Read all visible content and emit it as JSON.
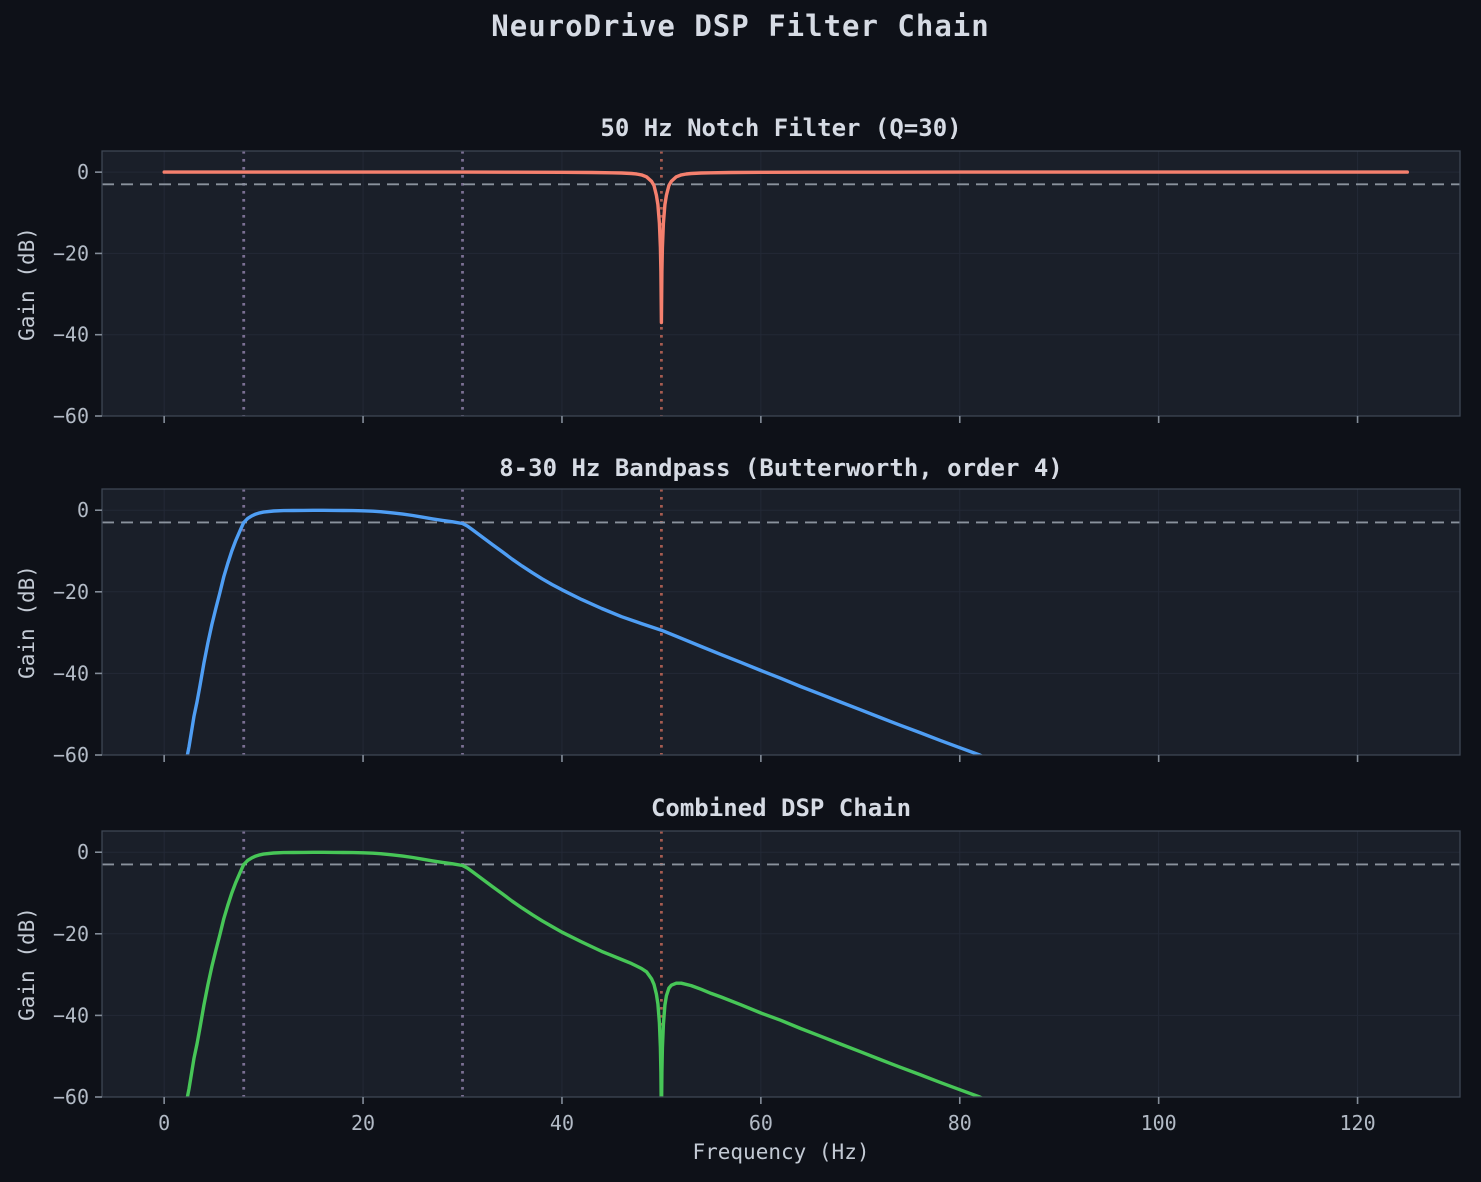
{
  "figure": {
    "title": "NeuroDrive DSP Filter Chain",
    "xlabel": "Frequency (Hz)",
    "colors": {
      "background": "#0e1118",
      "axes_background": "#1a1f29",
      "title_text": "#d6dbe4",
      "axis_label_text": "#c3cad4",
      "tick_text": "#b2bac5",
      "grid": "#232936",
      "spine": "#3e4654",
      "tick_mark": "#848d99",
      "notch_curve": "#f5806e",
      "bandpass_curve": "#4f9ef4",
      "combined_curve": "#47c657",
      "band_edge_vline": "#7b6f93",
      "notch_freq_vline": "#a65b50",
      "minus3db_line": "#8a929d"
    }
  },
  "chart_data": [
    {
      "type": "line",
      "title": "50 Hz Notch Filter (Q=30)",
      "ylabel": "Gain (dB)",
      "color": "#f5806e",
      "xlim": [
        -6.25,
        130.3
      ],
      "ylim": [
        -60,
        5.2
      ],
      "xticks": [
        0,
        20,
        40,
        60,
        80,
        100,
        120
      ],
      "yticks": [
        0,
        -20,
        -40,
        -60
      ],
      "show_xticklabels": false,
      "grid": true,
      "vlines": [
        {
          "x": 8,
          "color": "#7b6f93",
          "style": "dotted"
        },
        {
          "x": 30,
          "color": "#7b6f93",
          "style": "dotted"
        },
        {
          "x": 50,
          "color": "#a65b50",
          "style": "dotted"
        }
      ],
      "hline": {
        "y": -3,
        "color": "#8a929d",
        "style": "dashed"
      },
      "points": [
        [
          0,
          0
        ],
        [
          10,
          0
        ],
        [
          20,
          0
        ],
        [
          30,
          0
        ],
        [
          35,
          -0.02
        ],
        [
          40,
          -0.05
        ],
        [
          43,
          -0.1
        ],
        [
          45,
          -0.16
        ],
        [
          46,
          -0.22
        ],
        [
          47,
          -0.33
        ],
        [
          47.5,
          -0.45
        ],
        [
          48,
          -0.68
        ],
        [
          48.5,
          -1.15
        ],
        [
          49,
          -2.25
        ],
        [
          49.25,
          -3.3
        ],
        [
          49.5,
          -5.7
        ],
        [
          49.65,
          -8
        ],
        [
          49.8,
          -12.6
        ],
        [
          49.9,
          -18.6
        ],
        [
          49.95,
          -24.5
        ],
        [
          50,
          -37
        ],
        [
          50.05,
          -24.5
        ],
        [
          50.1,
          -18.6
        ],
        [
          50.2,
          -12.6
        ],
        [
          50.35,
          -8
        ],
        [
          50.5,
          -5.7
        ],
        [
          50.75,
          -3.3
        ],
        [
          51,
          -2.25
        ],
        [
          51.5,
          -1.15
        ],
        [
          52,
          -0.68
        ],
        [
          52.5,
          -0.45
        ],
        [
          53,
          -0.33
        ],
        [
          54,
          -0.22
        ],
        [
          55,
          -0.16
        ],
        [
          57,
          -0.1
        ],
        [
          60,
          -0.05
        ],
        [
          65,
          -0.02
        ],
        [
          70,
          -0.01
        ],
        [
          80,
          0
        ],
        [
          90,
          0
        ],
        [
          100,
          0
        ],
        [
          110,
          0
        ],
        [
          120,
          0
        ],
        [
          125,
          0
        ]
      ]
    },
    {
      "type": "line",
      "title": "8-30 Hz Bandpass (Butterworth, order 4)",
      "ylabel": "Gain (dB)",
      "color": "#4f9ef4",
      "xlim": [
        -6.25,
        130.3
      ],
      "ylim": [
        -60,
        5.2
      ],
      "xticks": [
        0,
        20,
        40,
        60,
        80,
        100,
        120
      ],
      "yticks": [
        0,
        -20,
        -40,
        -60
      ],
      "show_xticklabels": false,
      "grid": true,
      "vlines": [
        {
          "x": 8,
          "color": "#7b6f93",
          "style": "dotted"
        },
        {
          "x": 30,
          "color": "#7b6f93",
          "style": "dotted"
        },
        {
          "x": 50,
          "color": "#a65b50",
          "style": "dotted"
        }
      ],
      "hline": {
        "y": -3,
        "color": "#8a929d",
        "style": "dashed"
      },
      "points": [
        [
          2.3,
          -60.5
        ],
        [
          2.5,
          -58
        ],
        [
          2.8,
          -53.5
        ],
        [
          3,
          -50.5
        ],
        [
          3.3,
          -47
        ],
        [
          3.6,
          -43
        ],
        [
          4,
          -37.5
        ],
        [
          4.4,
          -32.5
        ],
        [
          4.8,
          -28
        ],
        [
          5.2,
          -24
        ],
        [
          5.6,
          -20.3
        ],
        [
          6,
          -16.3
        ],
        [
          6.4,
          -13
        ],
        [
          6.8,
          -10
        ],
        [
          7.2,
          -7.4
        ],
        [
          7.6,
          -5.2
        ],
        [
          8,
          -3
        ],
        [
          8.4,
          -2
        ],
        [
          8.8,
          -1.4
        ],
        [
          9.2,
          -0.95
        ],
        [
          9.6,
          -0.65
        ],
        [
          10,
          -0.45
        ],
        [
          11,
          -0.2
        ],
        [
          12,
          -0.1
        ],
        [
          13,
          -0.06
        ],
        [
          14,
          -0.04
        ],
        [
          15,
          -0.03
        ],
        [
          16,
          -0.03
        ],
        [
          17,
          -0.04
        ],
        [
          18,
          -0.06
        ],
        [
          19,
          -0.1
        ],
        [
          20,
          -0.15
        ],
        [
          21,
          -0.25
        ],
        [
          22,
          -0.42
        ],
        [
          23,
          -0.65
        ],
        [
          24,
          -0.95
        ],
        [
          25,
          -1.3
        ],
        [
          26,
          -1.72
        ],
        [
          27,
          -2.12
        ],
        [
          28,
          -2.5
        ],
        [
          29,
          -2.85
        ],
        [
          30,
          -3.25
        ],
        [
          30.5,
          -3.9
        ],
        [
          31,
          -4.8
        ],
        [
          32,
          -6.6
        ],
        [
          33,
          -8.4
        ],
        [
          34,
          -10.2
        ],
        [
          35,
          -12
        ],
        [
          36,
          -13.7
        ],
        [
          37,
          -15.3
        ],
        [
          38,
          -16.8
        ],
        [
          39,
          -18.2
        ],
        [
          40,
          -19.5
        ],
        [
          42,
          -21.9
        ],
        [
          44,
          -24.1
        ],
        [
          46,
          -26.1
        ],
        [
          48,
          -27.8
        ],
        [
          50,
          -29.4
        ],
        [
          52,
          -31.4
        ],
        [
          54,
          -33.4
        ],
        [
          56,
          -35.4
        ],
        [
          58,
          -37.3
        ],
        [
          60,
          -39.3
        ],
        [
          62,
          -41.2
        ],
        [
          64,
          -43.2
        ],
        [
          66,
          -45.1
        ],
        [
          68,
          -47
        ],
        [
          70,
          -48.9
        ],
        [
          72,
          -50.8
        ],
        [
          74,
          -52.7
        ],
        [
          76,
          -54.5
        ],
        [
          78,
          -56.4
        ],
        [
          80,
          -58.2
        ],
        [
          82,
          -60
        ],
        [
          82.5,
          -60.6
        ]
      ]
    },
    {
      "type": "line",
      "title": "Combined DSP Chain",
      "ylabel": "Gain (dB)",
      "color": "#47c657",
      "xlim": [
        -6.25,
        130.3
      ],
      "ylim": [
        -60,
        5.2
      ],
      "xticks": [
        0,
        20,
        40,
        60,
        80,
        100,
        120
      ],
      "yticks": [
        0,
        -20,
        -40,
        -60
      ],
      "show_xticklabels": true,
      "grid": true,
      "vlines": [
        {
          "x": 8,
          "color": "#7b6f93",
          "style": "dotted"
        },
        {
          "x": 30,
          "color": "#7b6f93",
          "style": "dotted"
        },
        {
          "x": 50,
          "color": "#a65b50",
          "style": "dotted"
        }
      ],
      "hline": {
        "y": -3,
        "color": "#8a929d",
        "style": "dashed"
      },
      "points": [
        [
          2.3,
          -60.5
        ],
        [
          2.5,
          -58
        ],
        [
          2.8,
          -53.5
        ],
        [
          3,
          -50.5
        ],
        [
          3.3,
          -47
        ],
        [
          3.6,
          -43
        ],
        [
          4,
          -37.5
        ],
        [
          4.4,
          -32.5
        ],
        [
          4.8,
          -28
        ],
        [
          5.2,
          -24
        ],
        [
          5.6,
          -20.3
        ],
        [
          6,
          -16.3
        ],
        [
          6.4,
          -13
        ],
        [
          6.8,
          -10
        ],
        [
          7.2,
          -7.4
        ],
        [
          7.6,
          -5.2
        ],
        [
          8,
          -3
        ],
        [
          8.4,
          -2
        ],
        [
          8.8,
          -1.4
        ],
        [
          9.2,
          -0.95
        ],
        [
          9.6,
          -0.65
        ],
        [
          10,
          -0.45
        ],
        [
          11,
          -0.2
        ],
        [
          12,
          -0.1
        ],
        [
          13,
          -0.06
        ],
        [
          14,
          -0.04
        ],
        [
          15,
          -0.03
        ],
        [
          16,
          -0.03
        ],
        [
          17,
          -0.04
        ],
        [
          18,
          -0.06
        ],
        [
          19,
          -0.1
        ],
        [
          20,
          -0.15
        ],
        [
          21,
          -0.25
        ],
        [
          22,
          -0.42
        ],
        [
          23,
          -0.65
        ],
        [
          24,
          -0.95
        ],
        [
          25,
          -1.3
        ],
        [
          26,
          -1.72
        ],
        [
          27,
          -2.12
        ],
        [
          28,
          -2.5
        ],
        [
          29,
          -2.85
        ],
        [
          30,
          -3.25
        ],
        [
          30.5,
          -3.9
        ],
        [
          31,
          -4.8
        ],
        [
          32,
          -6.6
        ],
        [
          33,
          -8.4
        ],
        [
          34,
          -10.2
        ],
        [
          35,
          -12
        ],
        [
          36,
          -13.7
        ],
        [
          37,
          -15.3
        ],
        [
          38,
          -16.8
        ],
        [
          39,
          -18.2
        ],
        [
          40,
          -19.6
        ],
        [
          42,
          -22
        ],
        [
          44,
          -24.3
        ],
        [
          45,
          -25.3
        ],
        [
          46,
          -26.3
        ],
        [
          47,
          -27.3
        ],
        [
          48,
          -28.5
        ],
        [
          48.5,
          -29.3
        ],
        [
          49,
          -31
        ],
        [
          49.25,
          -32.4
        ],
        [
          49.5,
          -34.8
        ],
        [
          49.65,
          -37.2
        ],
        [
          49.8,
          -41.8
        ],
        [
          49.9,
          -47.9
        ],
        [
          49.95,
          -53.9
        ],
        [
          50,
          -66
        ],
        [
          50.05,
          -53.9
        ],
        [
          50.1,
          -48
        ],
        [
          50.2,
          -42.2
        ],
        [
          50.35,
          -37.5
        ],
        [
          50.5,
          -35.2
        ],
        [
          50.75,
          -33.3
        ],
        [
          51,
          -32.6
        ],
        [
          51.5,
          -32.1
        ],
        [
          52,
          -32.1
        ],
        [
          53,
          -32.7
        ],
        [
          54,
          -33.6
        ],
        [
          55,
          -34.6
        ],
        [
          56,
          -35.5
        ],
        [
          58,
          -37.4
        ],
        [
          60,
          -39.4
        ],
        [
          62,
          -41.2
        ],
        [
          64,
          -43.2
        ],
        [
          66,
          -45.1
        ],
        [
          68,
          -47
        ],
        [
          70,
          -48.9
        ],
        [
          72,
          -50.8
        ],
        [
          74,
          -52.7
        ],
        [
          76,
          -54.5
        ],
        [
          78,
          -56.4
        ],
        [
          80,
          -58.2
        ],
        [
          82,
          -60
        ],
        [
          82.5,
          -60.6
        ]
      ]
    }
  ]
}
